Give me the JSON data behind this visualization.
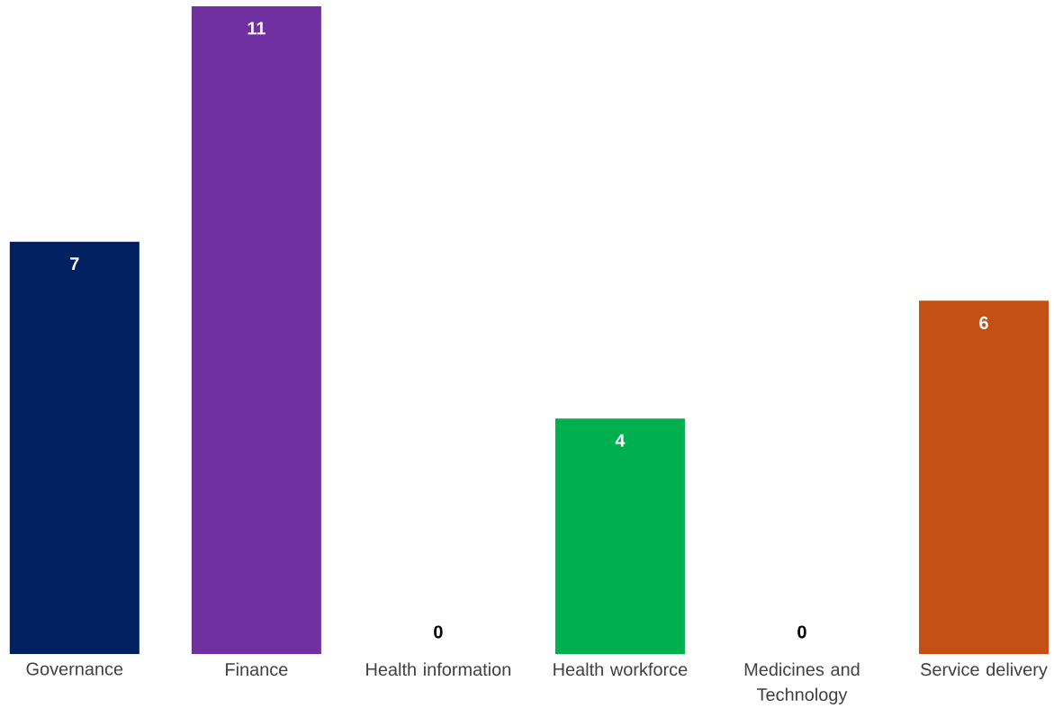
{
  "chart_data": {
    "type": "bar",
    "categories": [
      "Governance",
      "Finance",
      "Health information",
      "Health workforce",
      "Medicines and Technology",
      "Service delivery"
    ],
    "values": [
      7,
      11,
      0,
      4,
      0,
      6
    ],
    "colors": [
      "#002060",
      "#7030a0",
      "#7f7f7f",
      "#00b050",
      "#7f7f7f",
      "#c55016"
    ],
    "data_labels": true
  }
}
